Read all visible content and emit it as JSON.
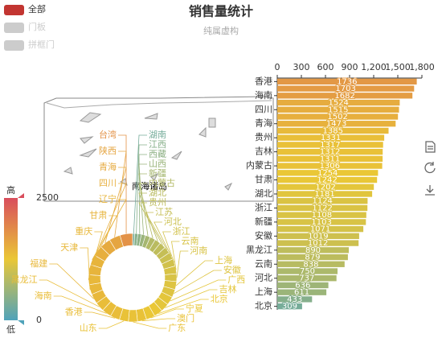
{
  "title": "销售量统计",
  "subtitle": "纯属虚构",
  "legend": [
    {
      "name": "全部",
      "color": "#c23531"
    },
    {
      "name": "门板",
      "color": "#cccccc"
    },
    {
      "name": "拼框门",
      "color": "#cccccc"
    }
  ],
  "visual_map": {
    "min": 0,
    "max": 2500,
    "text": [
      "高",
      "低"
    ],
    "colors": [
      "#50a3ba",
      "#eac736",
      "#d94e5d"
    ]
  },
  "map_label": "南海诸岛",
  "chart_data": [
    {
      "type": "pie",
      "categories": [
        "湖南",
        "江西",
        "西藏",
        "山西",
        "新疆",
        "内蒙古",
        "湖北",
        "贵州",
        "江苏",
        "河北",
        "浙江",
        "云南",
        "河南",
        "上海",
        "安徽",
        "广西",
        "吉林",
        "北京",
        "宁夏",
        "澳门",
        "广东",
        "山东",
        "香港",
        "海南",
        "黑龙江",
        "福建",
        "天津",
        "重庆",
        "甘肃",
        "辽宁",
        "四川",
        "青海",
        "陕西",
        "台湾"
      ],
      "values": [
        300,
        450,
        500,
        600,
        700,
        800,
        850,
        900,
        950,
        1000,
        1050,
        1100,
        1100,
        1150,
        1150,
        1200,
        1200,
        1250,
        1250,
        1300,
        1300,
        1300,
        1350,
        1350,
        1350,
        1400,
        1400,
        1400,
        1450,
        1450,
        1500,
        1550,
        1600,
        1800
      ]
    },
    {
      "type": "hbar",
      "categories": [
        "香港",
        null,
        "海南",
        null,
        "四川",
        null,
        "青海",
        null,
        "贵州",
        null,
        "吉林",
        null,
        "内蒙古",
        null,
        "甘肃",
        null,
        "湖北",
        null,
        "浙江",
        null,
        "新疆",
        null,
        "安徽",
        null,
        "黑龙江",
        null,
        "云南",
        null,
        "河北",
        null,
        "上海",
        null,
        "北京"
      ],
      "values": [
        1736,
        1703,
        1682,
        1524,
        1515,
        1502,
        1473,
        1385,
        1331,
        1317,
        1312,
        1311,
        1306,
        1254,
        1242,
        1202,
        1181,
        1124,
        1122,
        1108,
        1103,
        1071,
        1019,
        1012,
        890,
        879,
        838,
        750,
        737,
        636,
        611,
        433,
        309
      ],
      "xlim": [
        0,
        1800
      ],
      "xticks": [
        0,
        300,
        600,
        900,
        {
          "value": 1200,
          "label": "1,200"
        },
        {
          "value": 1500,
          "label": "1,500"
        },
        {
          "value": 1800,
          "label": "1,800"
        }
      ]
    }
  ]
}
